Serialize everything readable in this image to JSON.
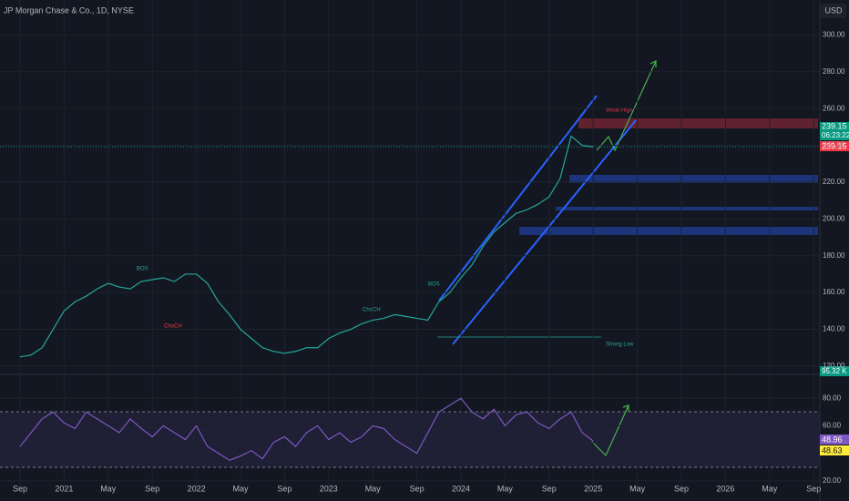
{
  "header": {
    "title": "JP Morgan Chase & Co., 1D, NYSE",
    "currency": "USD"
  },
  "chart_data": [
    {
      "type": "line",
      "color": "#26a69a",
      "categories": [
        "Sep",
        null,
        null,
        null,
        "2021",
        null,
        null,
        null,
        "May",
        null,
        null,
        null,
        "Sep",
        null,
        null,
        null,
        "2022",
        null,
        null,
        null,
        "May",
        null,
        null,
        null,
        "Sep",
        null,
        null,
        null,
        "2023",
        null,
        null,
        null,
        "May",
        null,
        null,
        null,
        "Sep",
        null,
        null,
        null,
        "2024",
        null,
        null,
        null,
        "May",
        null,
        null,
        null,
        "Sep",
        null,
        null,
        null,
        "2025",
        null,
        null,
        null,
        "May",
        null,
        null,
        null,
        "Sep",
        null,
        null,
        null,
        "2026",
        null,
        null,
        null,
        "May",
        null,
        null,
        null,
        "Sep"
      ],
      "values": [
        125,
        126,
        130,
        140,
        150,
        155,
        158,
        162,
        165,
        163,
        162,
        166,
        167,
        168,
        166,
        170,
        170,
        165,
        155,
        148,
        140,
        135,
        130,
        128,
        127,
        128,
        130,
        130,
        135,
        138,
        140,
        143,
        145,
        146,
        148,
        147,
        146,
        145,
        155,
        160,
        168,
        175,
        185,
        193,
        198,
        203,
        205,
        208,
        212,
        222,
        245,
        240,
        239.15,
        null,
        null,
        null,
        null,
        null,
        null,
        null,
        null,
        null,
        null,
        null,
        null,
        null,
        null,
        null,
        null,
        null,
        null,
        null,
        null
      ],
      "ylim": [
        116,
        319
      ],
      "yticks": [
        {
          "value": 120,
          "label": "120.00"
        },
        {
          "value": 140,
          "label": "140.00"
        },
        {
          "value": 160,
          "label": "160.00"
        },
        {
          "value": 180,
          "label": "180.00"
        },
        {
          "value": 200,
          "label": "200.00"
        },
        {
          "value": 220,
          "label": "220.00"
        },
        {
          "value": 240,
          "label": "240.00"
        },
        {
          "value": 260,
          "label": "260.00"
        },
        {
          "value": 280,
          "label": "280.00"
        },
        {
          "value": 300,
          "label": "300.00"
        }
      ],
      "last_price": 239.15,
      "countdown": "06:23:22",
      "volume_label": "95.32 K",
      "annotations": [
        "BOS",
        "ChoCH",
        "Weak High",
        "Strong Low"
      ]
    },
    {
      "type": "line",
      "color": "#7e57c2",
      "values": [
        45,
        55,
        65,
        70,
        62,
        58,
        70,
        65,
        60,
        55,
        65,
        58,
        52,
        60,
        55,
        50,
        60,
        45,
        40,
        35,
        38,
        42,
        36,
        48,
        52,
        45,
        55,
        60,
        50,
        55,
        48,
        52,
        60,
        58,
        50,
        45,
        40,
        55,
        70,
        75,
        80,
        70,
        65,
        72,
        60,
        68,
        70,
        62,
        58,
        65,
        70,
        55,
        48.96,
        null,
        null,
        null,
        null,
        null,
        null,
        null,
        null,
        null,
        null,
        null,
        null,
        null,
        null,
        null,
        null,
        null,
        null,
        null,
        null
      ],
      "ylim": [
        12,
        96
      ],
      "yticks": [
        {
          "value": 20,
          "label": "20.00"
        },
        {
          "value": 60,
          "label": "60.00"
        },
        {
          "value": 80,
          "label": "80.00"
        }
      ],
      "rsi_last": 48.96,
      "rsi_ma_last": 48.63
    }
  ]
}
